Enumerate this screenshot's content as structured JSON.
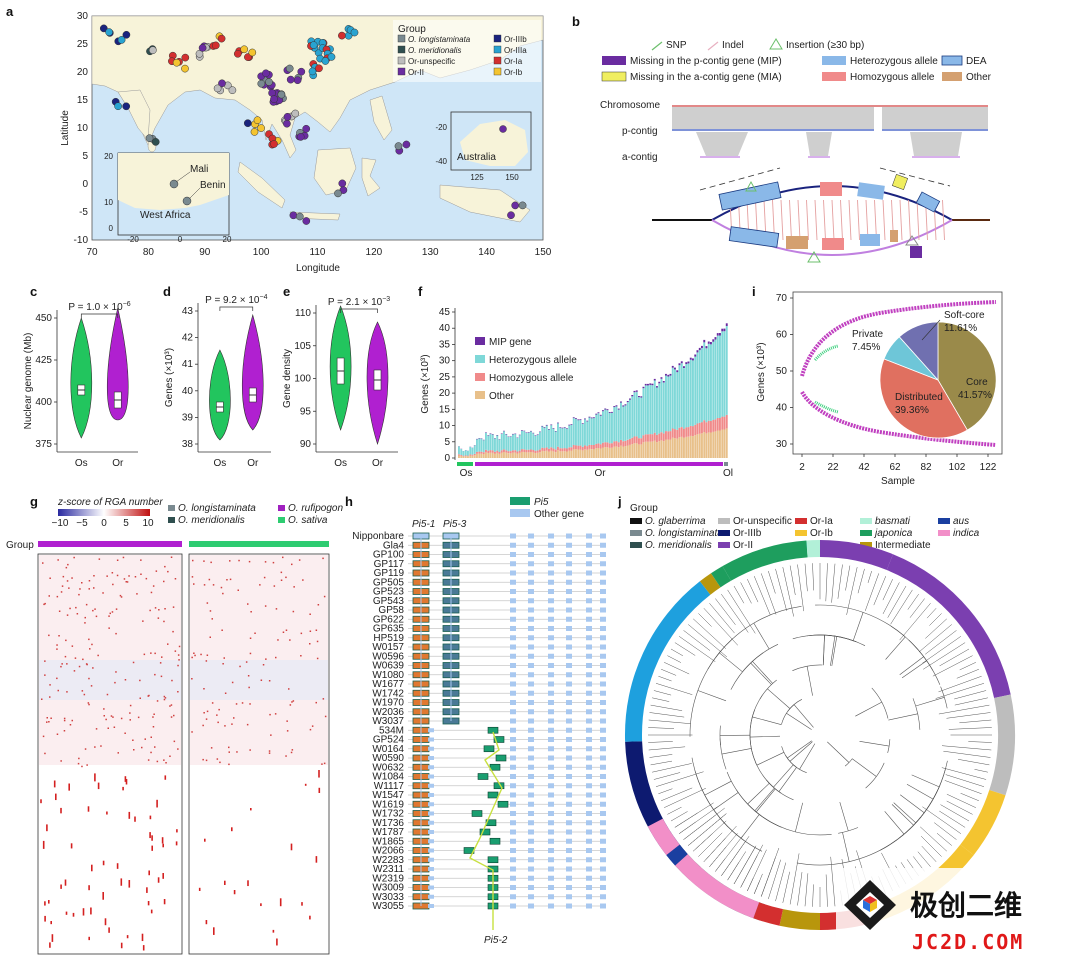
{
  "panel_labels": [
    "a",
    "b",
    "c",
    "d",
    "e",
    "f",
    "g",
    "h",
    "i",
    "j"
  ],
  "watermark": {
    "brand": "极创二维",
    "url": "JC2D.COM"
  },
  "panel_a": {
    "xlabel": "Longitude",
    "ylabel": "Latitude",
    "x_ticks": [
      "70",
      "80",
      "90",
      "100",
      "110",
      "120",
      "130",
      "140",
      "150"
    ],
    "y_ticks": [
      "30",
      "25",
      "20",
      "15",
      "10",
      "5",
      "0",
      "-5",
      "-10"
    ],
    "legend_title": "Group",
    "legend_items": [
      {
        "label": "O. longistaminata",
        "color": "#7a8a90",
        "italic": true
      },
      {
        "label": "Or-IIIb",
        "color": "#1a237e",
        "italic": false
      },
      {
        "label": "O. meridionalis",
        "color": "#2f4f4f",
        "italic": true
      },
      {
        "label": "Or-IIIa",
        "color": "#29a3d1",
        "italic": false
      },
      {
        "label": "Or-unspecific",
        "color": "#bdbdbd",
        "italic": false
      },
      {
        "label": "Or-Ia",
        "color": "#d32f2f",
        "italic": false
      },
      {
        "label": "Or-II",
        "color": "#6a2ca0",
        "italic": false
      },
      {
        "label": "Or-Ib",
        "color": "#f4c430",
        "italic": false
      }
    ],
    "inset_africa": {
      "labels": [
        "Mali",
        "Benin",
        "West Africa"
      ],
      "x_ticks": [
        "-20",
        "0",
        "20"
      ],
      "y_ticks": [
        "20",
        "10",
        "0"
      ]
    },
    "inset_australia": {
      "label": "Australia",
      "x_ticks": [
        "125",
        "150"
      ],
      "y_ticks": [
        "-20",
        "-40"
      ]
    }
  },
  "panel_b": {
    "legend": {
      "snp": "SNP",
      "indel": "Indel",
      "insertion": "Insertion (≥30 bp)",
      "mip": "Missing in the p-contig gene (MIP)",
      "mia": "Missing in the a-contig gene (MIA)",
      "het": "Heterozygous allele",
      "hom": "Homozygous allele",
      "dea": "DEA",
      "other": "Other"
    },
    "track_labels": [
      "Chromosome",
      "p-contig",
      "a-contig"
    ]
  },
  "panel_c": {
    "ylabel": "Nuclear genome (Mb)",
    "p": "P = 1.0 × 10",
    "p_exp": "−6",
    "y_ticks": [
      "450",
      "425",
      "400",
      "375"
    ],
    "x_ticks": [
      "Os",
      "Or"
    ]
  },
  "panel_d": {
    "ylabel": "Genes (×10³)",
    "p": "P = 9.2 × 10",
    "p_exp": "−4",
    "y_ticks": [
      "43",
      "42",
      "41",
      "40",
      "39",
      "38"
    ],
    "x_ticks": [
      "Os",
      "Or"
    ]
  },
  "panel_e": {
    "ylabel": "Gene density",
    "p": "P = 2.1 × 10",
    "p_exp": "−3",
    "y_ticks": [
      "110",
      "105",
      "100",
      "95",
      "90"
    ],
    "x_ticks": [
      "Os",
      "Or"
    ]
  },
  "panel_f": {
    "ylabel": "Genes (×10³)",
    "y_ticks": [
      "45",
      "40",
      "35",
      "30",
      "25",
      "20",
      "15",
      "10",
      "5",
      "0"
    ],
    "legend": [
      "MIP gene",
      "Heterozygous allele",
      "Homozygous allele",
      "Other"
    ],
    "x_groups": [
      "Os",
      "Or",
      "Ol"
    ]
  },
  "panel_g": {
    "legend_title": "z-score of RGA number",
    "scale_ticks": [
      "−10",
      "−5",
      "0",
      "5",
      "10"
    ],
    "species": [
      {
        "label": "O. longistaminata",
        "color": "#7a8a90"
      },
      {
        "label": "O. rufipogon",
        "color": "#a020c0"
      },
      {
        "label": "O. meridionalis",
        "color": "#2f4f4f"
      },
      {
        "label": "O. sativa",
        "color": "#2ecc71"
      }
    ],
    "group_label": "Group"
  },
  "panel_h": {
    "legend": [
      "Pi5",
      "Other gene"
    ],
    "gene_labels": [
      "Pi5-1",
      "Pi5-3",
      "Pi5-2"
    ],
    "accessions": [
      "Nipponbare",
      "Gla4",
      "GP100",
      "GP117",
      "GP119",
      "GP505",
      "GP523",
      "GP543",
      "GP58",
      "GP622",
      "GP635",
      "HP519",
      "W0157",
      "W0596",
      "W0639",
      "W1080",
      "W1677",
      "W1742",
      "W1970",
      "W2036",
      "W3037",
      "534M",
      "GP524",
      "W0164",
      "W0590",
      "W0632",
      "W1084",
      "W1117",
      "W1547",
      "W1619",
      "W1732",
      "W1736",
      "W1787",
      "W1865",
      "W2066",
      "W2283",
      "W2311",
      "W2319",
      "W3009",
      "W3033",
      "W3055"
    ]
  },
  "panel_i": {
    "ylabel": "Genes (×10³)",
    "xlabel": "Sample",
    "y_ticks": [
      "70",
      "60",
      "50",
      "40",
      "30"
    ],
    "x_ticks": [
      "2",
      "22",
      "42",
      "62",
      "82",
      "102",
      "122"
    ],
    "pie": [
      {
        "label": "Core",
        "pct": "41.57%",
        "value": 41.57,
        "color": "#9a8a4a"
      },
      {
        "label": "Distributed",
        "pct": "39.36%",
        "value": 39.36,
        "color": "#e07060"
      },
      {
        "label": "Private",
        "pct": "7.45%",
        "value": 7.45,
        "color": "#6ec6d8"
      },
      {
        "label": "Soft-core",
        "pct": "11.61%",
        "value": 11.61,
        "color": "#7070b0"
      }
    ]
  },
  "panel_j": {
    "legend_title": "Group",
    "legend_items": [
      {
        "label": "O. glaberrima",
        "color": "#111111",
        "italic": true
      },
      {
        "label": "Or-unspecific",
        "color": "#bdbdbd",
        "italic": false
      },
      {
        "label": "Or-Ia",
        "color": "#d32f2f",
        "italic": false
      },
      {
        "label": "basmati",
        "color": "#b2f0d8",
        "italic": true
      },
      {
        "label": "aus",
        "color": "#1a3fa0",
        "italic": true
      },
      {
        "label": "O. longistaminata",
        "color": "#7a8a90",
        "italic": true
      },
      {
        "label": "Or-IIIb",
        "color": "#0d1a70",
        "italic": false
      },
      {
        "label": "Or-Ib",
        "color": "#f4c430",
        "italic": false
      },
      {
        "label": "japonica",
        "color": "#1e9e5e",
        "italic": true
      },
      {
        "label": "indica",
        "color": "#f28fc8",
        "italic": true
      },
      {
        "label": "O. meridionalis",
        "color": "#2f4f4f",
        "italic": true
      },
      {
        "label": "Or-II",
        "color": "#7b3fb0",
        "italic": false
      },
      {
        "label": "Or-IIIa",
        "color": "#1ea0de",
        "italic": false
      },
      {
        "label": "Intermediate",
        "color": "#b8960c",
        "italic": false
      }
    ]
  },
  "colors": {
    "os_green": "#22c55e",
    "or_purple": "#b020d0",
    "mip": "#6a2ca0",
    "het": "#7fd8d8",
    "hom": "#f08a8a",
    "other": "#e8c08a",
    "sea": "#cfe6f7",
    "land": "#f7f3d9"
  }
}
